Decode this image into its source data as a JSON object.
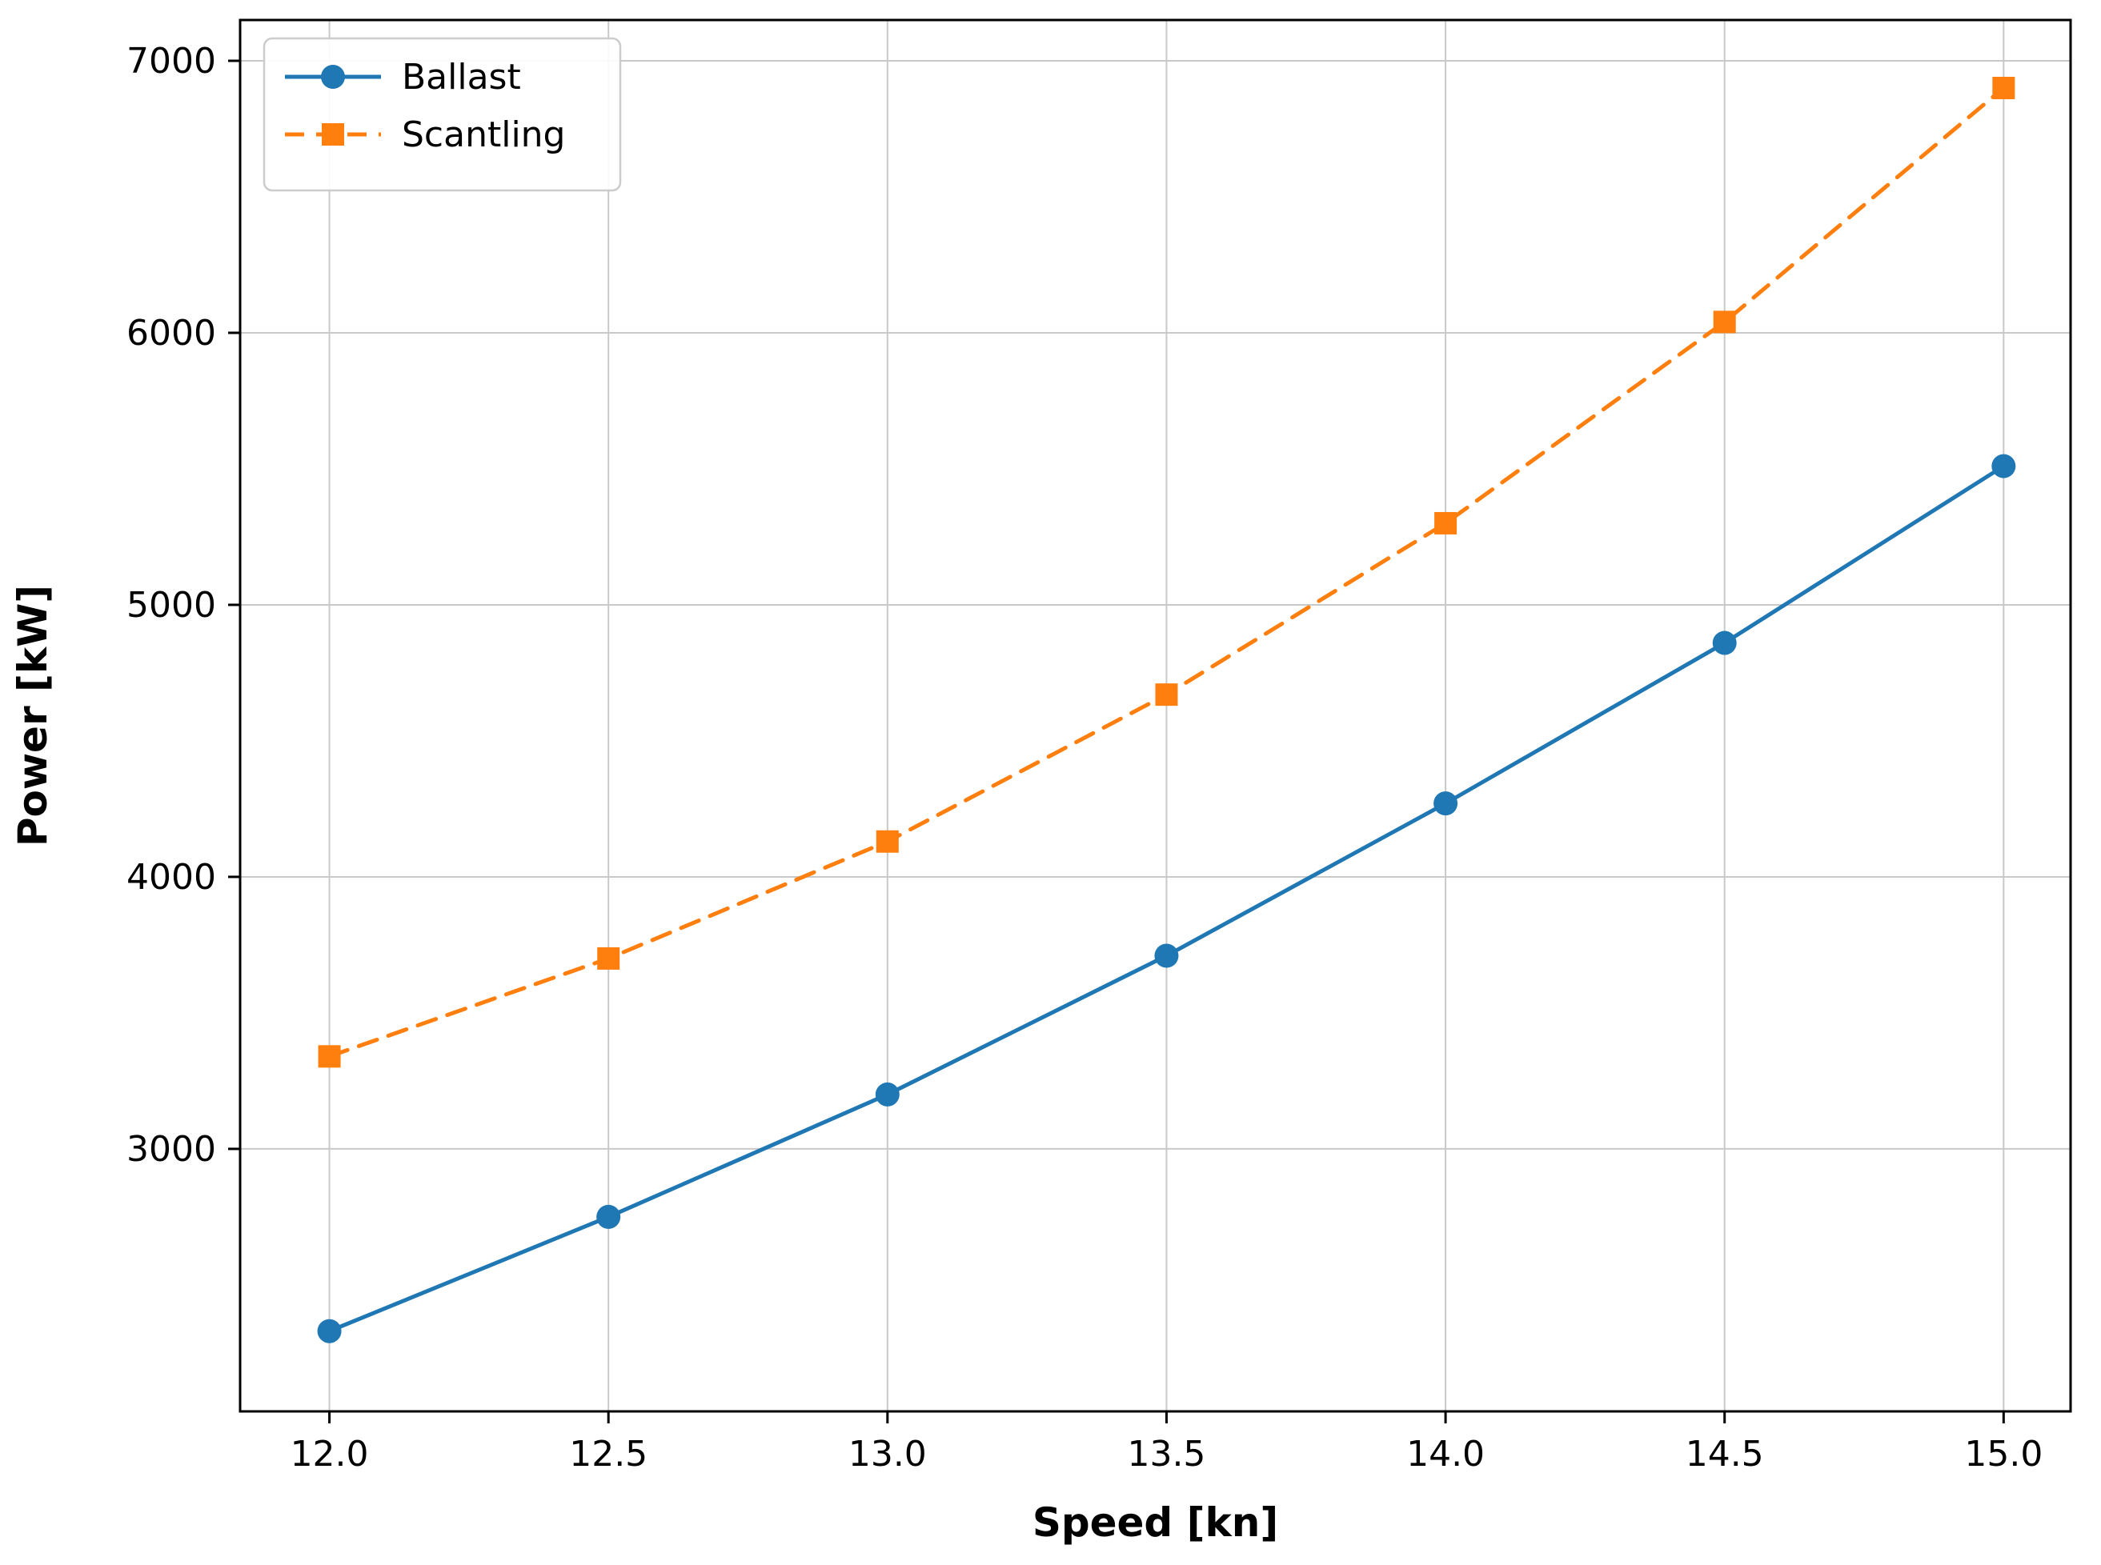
{
  "chart_data": {
    "type": "line",
    "title": "",
    "xlabel": "Speed [kn]",
    "ylabel": "Power [kW]",
    "x": [
      12.0,
      12.5,
      13.0,
      13.5,
      14.0,
      14.5,
      15.0
    ],
    "xtick_labels": [
      "12.0",
      "12.5",
      "13.0",
      "13.5",
      "14.0",
      "14.5",
      "15.0"
    ],
    "yticks": [
      3000,
      4000,
      5000,
      6000,
      7000
    ],
    "ytick_labels": [
      "3000",
      "4000",
      "5000",
      "6000",
      "7000"
    ],
    "xlim": [
      11.84,
      15.12
    ],
    "ylim": [
      2035,
      7150
    ],
    "grid": true,
    "legend_position": "upper-left",
    "series": [
      {
        "name": "Ballast",
        "color": "#1f77b4",
        "line_style": "solid",
        "marker": "circle",
        "values": [
          2330,
          2750,
          3200,
          3710,
          4270,
          4860,
          5510
        ]
      },
      {
        "name": "Scantling",
        "color": "#ff7f0e",
        "line_style": "dashed",
        "marker": "square",
        "values": [
          3340,
          3700,
          4130,
          4670,
          5300,
          6040,
          6900
        ]
      }
    ],
    "style": {
      "grid_color": "#c9c9c9",
      "axis_color": "#000000",
      "legend_border_color": "#cccccc",
      "background_color": "#ffffff"
    }
  }
}
